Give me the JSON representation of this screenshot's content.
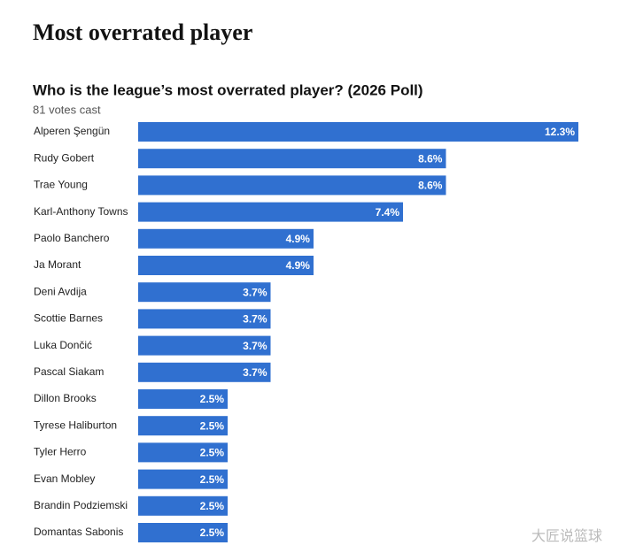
{
  "page_title": "Most overrated player",
  "watermark": "大匠说篮球",
  "chart_data": {
    "type": "bar",
    "orientation": "horizontal",
    "title": "Who is the league’s most overrated player? (2026 Poll)",
    "subtitle": "81 votes cast",
    "color": "#3070d0",
    "categories": [
      "Alperen Şengün",
      "Rudy Gobert",
      "Trae Young",
      "Karl-Anthony Towns",
      "Paolo Banchero",
      "Ja Morant",
      "Deni Avdija",
      "Scottie Barnes",
      "Luka Dončić",
      "Pascal Siakam",
      "Dillon Brooks",
      "Tyrese Haliburton",
      "Tyler Herro",
      "Evan Mobley",
      "Brandin Podziemski",
      "Domantas Sabonis"
    ],
    "values": [
      12.3,
      8.6,
      8.6,
      7.4,
      4.9,
      4.9,
      3.7,
      3.7,
      3.7,
      3.7,
      2.5,
      2.5,
      2.5,
      2.5,
      2.5,
      2.5
    ],
    "value_labels": [
      "12.3%",
      "8.6%",
      "8.6%",
      "7.4%",
      "4.9%",
      "4.9%",
      "3.7%",
      "3.7%",
      "3.7%",
      "3.7%",
      "2.5%",
      "2.5%",
      "2.5%",
      "2.5%",
      "2.5%",
      "2.5%"
    ]
  }
}
